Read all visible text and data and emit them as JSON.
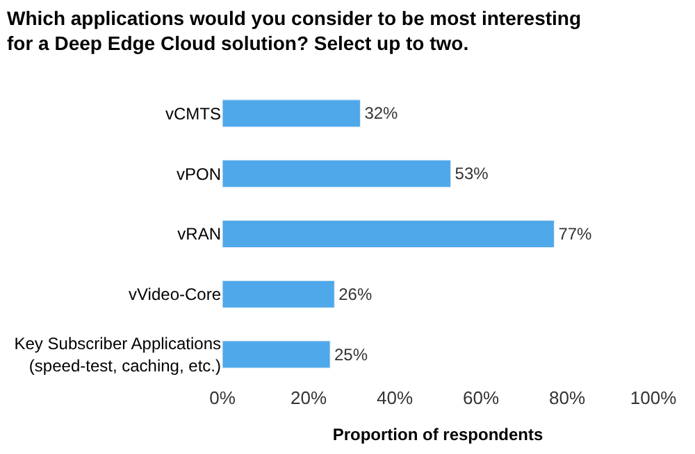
{
  "chart_data": {
    "type": "bar",
    "orientation": "horizontal",
    "title": "Which applications would you consider to be most interesting for a Deep Edge Cloud solution? Select up to two.",
    "categories": [
      "vCMTS",
      "vPON",
      "vRAN",
      "vVideo-Core",
      "Key Subscriber Applications (speed-test, caching, etc.)"
    ],
    "values": [
      32,
      53,
      77,
      26,
      25
    ],
    "value_labels": [
      "32%",
      "53%",
      "77%",
      "26%",
      "25%"
    ],
    "color": "#4ea8ea",
    "xlim": [
      0,
      100
    ],
    "xticks": [
      {
        "value": 0,
        "label": "0%"
      },
      {
        "value": 20,
        "label": "20%"
      },
      {
        "value": 40,
        "label": "40%"
      },
      {
        "value": 60,
        "label": "60%"
      },
      {
        "value": 80,
        "label": "80%"
      },
      {
        "value": 100,
        "label": "100%"
      }
    ],
    "xlabel": "Proportion of respondents"
  }
}
